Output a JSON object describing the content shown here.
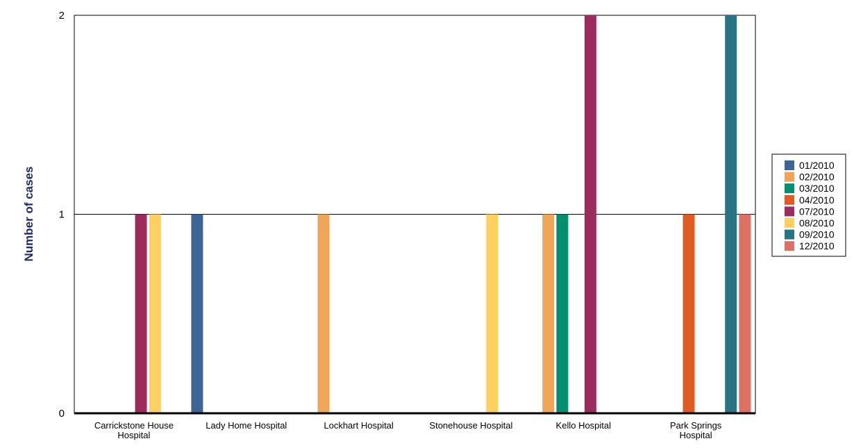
{
  "chart_data": {
    "type": "bar",
    "title": "",
    "xlabel": "",
    "ylabel": "Number of cases",
    "ylim": [
      0,
      2
    ],
    "yticks": [
      0,
      1,
      2
    ],
    "grid": true,
    "legend_position": "right",
    "categories": [
      [
        "Carrickstone House",
        "Hospital"
      ],
      [
        "Lady Home Hospital"
      ],
      [
        "Lockhart Hospital"
      ],
      [
        "Stonehouse Hospital"
      ],
      [
        "Kello Hospital"
      ],
      [
        "Park Springs",
        "Hospital"
      ]
    ],
    "series": [
      {
        "name": "01/2010",
        "color": "#3d6496",
        "values": [
          0,
          1,
          0,
          0,
          0,
          0
        ]
      },
      {
        "name": "02/2010",
        "color": "#f0a558",
        "values": [
          0,
          0,
          1,
          0,
          1,
          0
        ]
      },
      {
        "name": "03/2010",
        "color": "#009070",
        "values": [
          0,
          0,
          0,
          0,
          1,
          0
        ]
      },
      {
        "name": "04/2010",
        "color": "#e05a23",
        "values": [
          0,
          0,
          0,
          0,
          0,
          1
        ]
      },
      {
        "name": "07/2010",
        "color": "#9c2c5e",
        "values": [
          1,
          0,
          0,
          0,
          2,
          0
        ]
      },
      {
        "name": "08/2010",
        "color": "#ffd060",
        "values": [
          1,
          0,
          0,
          1,
          0,
          0
        ]
      },
      {
        "name": "09/2010",
        "color": "#2a7384",
        "values": [
          0,
          0,
          0,
          0,
          0,
          2
        ]
      },
      {
        "name": "12/2010",
        "color": "#dc7266",
        "values": [
          0,
          0,
          0,
          0,
          0,
          1
        ]
      }
    ]
  }
}
